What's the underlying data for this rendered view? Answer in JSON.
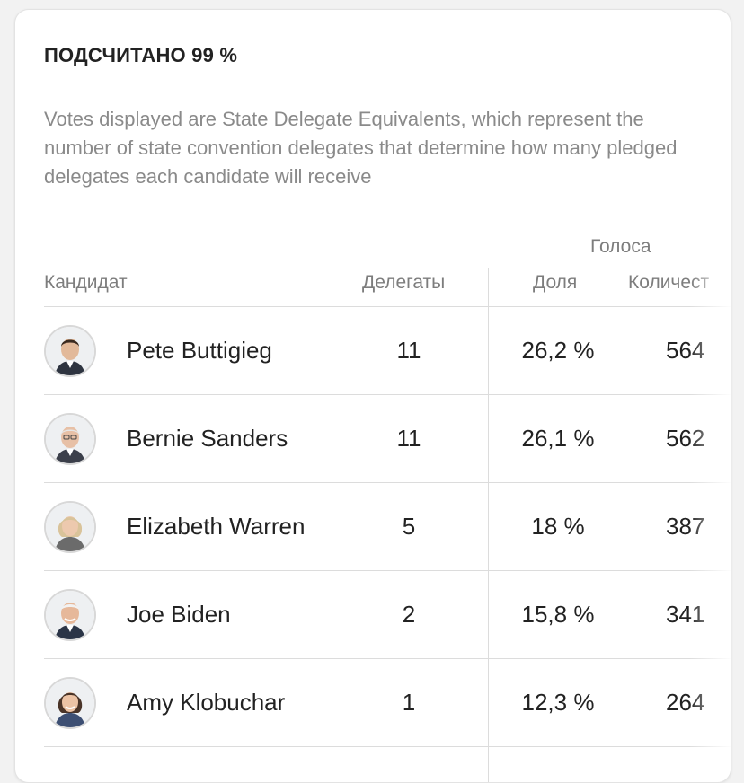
{
  "status": "ПОДСЧИТАНО 99 %",
  "note": "Votes displayed are State Delegate Equivalents, which represent the number of state convention delegates that determine how many pledged delegates each candidate will receive",
  "table": {
    "votes_group_label": "Голоса",
    "headers": {
      "candidate": "Кандидат",
      "delegates": "Делегаты",
      "share": "Доля",
      "count": "Количест"
    },
    "rows": [
      {
        "name": "Pete Buttigieg",
        "delegates": "11",
        "share": "26,2 %",
        "count": "564",
        "avatar_icon": "candidate-portrait-icon"
      },
      {
        "name": "Bernie Sanders",
        "delegates": "11",
        "share": "26,1 %",
        "count": "562",
        "avatar_icon": "candidate-portrait-icon"
      },
      {
        "name": "Elizabeth Warren",
        "delegates": "5",
        "share": "18 %",
        "count": "387",
        "avatar_icon": "candidate-portrait-icon"
      },
      {
        "name": "Joe Biden",
        "delegates": "2",
        "share": "15,8 %",
        "count": "341",
        "avatar_icon": "candidate-portrait-icon"
      },
      {
        "name": "Amy Klobuchar",
        "delegates": "1",
        "share": "12,3 %",
        "count": "264",
        "avatar_icon": "candidate-portrait-icon"
      }
    ]
  },
  "colors": {
    "text_primary": "#222222",
    "text_secondary": "#8a8a8a",
    "divider": "#dcdcdc",
    "card_background": "#ffffff"
  }
}
